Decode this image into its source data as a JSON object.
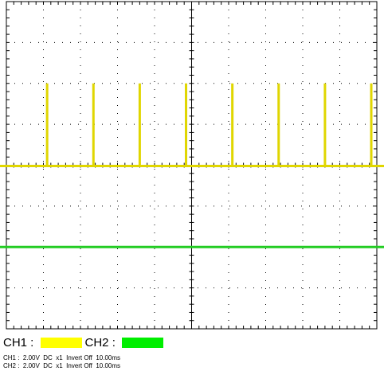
{
  "scope": {
    "divisions_x": 10,
    "divisions_y": 8,
    "time_per_div_ms": 10.0,
    "volts_per_div": 2.0,
    "grid_color": "#000000",
    "ch1": {
      "color": "#e0d600",
      "baseline_div": -0.02,
      "pulse_high_div": 2.0,
      "pulse_times_div": [
        1.1,
        2.35,
        3.6,
        4.85,
        6.1,
        7.35,
        8.6,
        9.85
      ]
    },
    "ch2": {
      "color": "#22cc22",
      "baseline_div": -2.0
    }
  },
  "legend": {
    "ch1_label": "CH1 : ",
    "ch1_color": "#ffff00",
    "ch2_label": "CH2 : ",
    "ch2_color": "#00ee00"
  },
  "info": {
    "ch1_line": "CH1 :  2.00V  DC  x1  Invert Off  10.00ms",
    "ch2_line": "CH2 :  2.00V  DC  x1  Invert Off  10.00ms"
  }
}
